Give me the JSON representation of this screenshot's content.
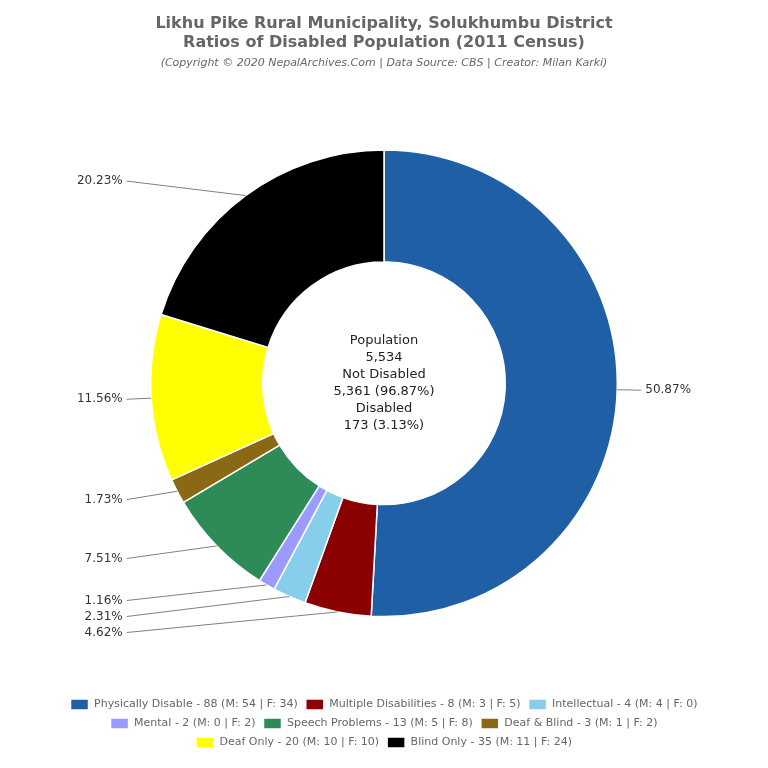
{
  "chart_data": {
    "type": "doughnut",
    "title": [
      "Likhu Pike Rural Municipality, Solukhumbu District",
      "Ratios of Disabled Population (2011 Census)"
    ],
    "subtitle": "(Copyright © 2020 NepalArchives.Com | Data Source: CBS | Creator: Milan Karki)",
    "categories": [
      "Physically Disable - 88 (M: 54 | F: 34)",
      "Multiple Disabilities - 8 (M: 3 | F: 5)",
      "Intellectual - 4 (M: 4 | F: 0)",
      "Mental - 2 (M: 0 | F: 2)",
      "Speech Problems - 13 (M: 5 | F: 8)",
      "Deaf & Blind - 3 (M: 1 | F: 2)",
      "Deaf Only - 20 (M: 10 | F: 10)",
      "Blind Only - 35 (M: 11 | F: 24)"
    ],
    "values": [
      50.87,
      4.62,
      2.31,
      1.16,
      7.51,
      1.73,
      11.56,
      20.23
    ],
    "value_labels": [
      "50.87%",
      "4.62%",
      "2.31%",
      "1.16%",
      "7.51%",
      "1.73%",
      "11.56%",
      "20.23%"
    ],
    "colors": [
      "#1f5fa6",
      "#8b0000",
      "#87ceeb",
      "#9b9bff",
      "#2e8b57",
      "#8b6914",
      "#ffff00",
      "#000000"
    ],
    "data_labels": true,
    "legend": "bottom",
    "annotations": [
      "Population",
      "5,534",
      "Not Disabled",
      "5,361 (96.87%)",
      "Disabled",
      "173 (3.13%)"
    ]
  }
}
